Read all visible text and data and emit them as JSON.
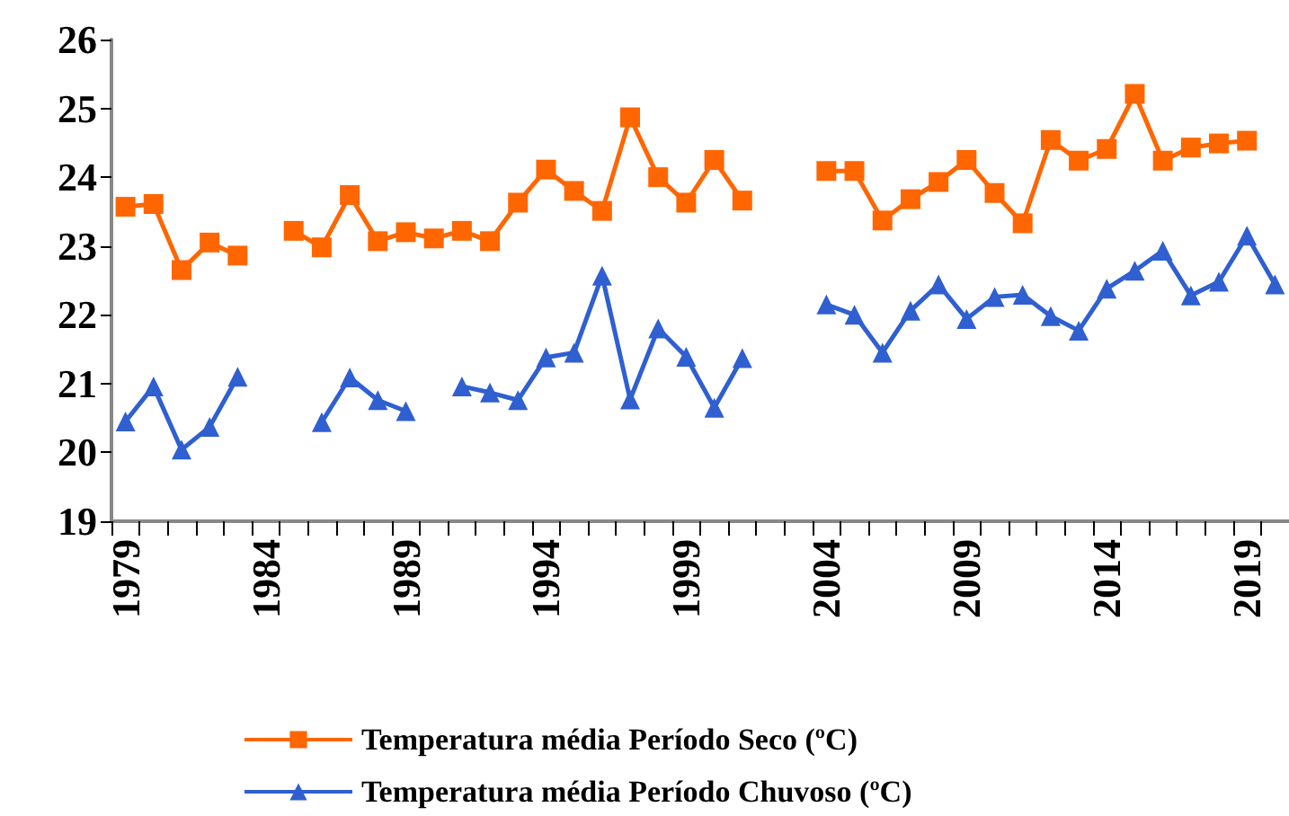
{
  "chart_data": {
    "type": "line",
    "categories": [
      "1979",
      null,
      null,
      null,
      null,
      "1984",
      null,
      null,
      null,
      null,
      "1989",
      null,
      null,
      null,
      null,
      "1994",
      null,
      null,
      null,
      null,
      "1999",
      null,
      null,
      null,
      null,
      "2004",
      null,
      null,
      null,
      null,
      "2009",
      null,
      null,
      null,
      null,
      "2014",
      null,
      null,
      null,
      null,
      "2019",
      null
    ],
    "series": [
      {
        "name": "Temperatura média Período Seco (ºC)",
        "color": "#ff6600",
        "marker": "square",
        "values": [
          23.57,
          23.61,
          22.65,
          23.05,
          22.86,
          null,
          23.22,
          22.98,
          23.74,
          23.07,
          23.2,
          23.11,
          23.22,
          23.07,
          23.63,
          24.11,
          23.8,
          23.51,
          24.87,
          24.0,
          23.63,
          24.25,
          23.66,
          null,
          null,
          24.09,
          24.09,
          23.37,
          23.68,
          23.93,
          24.25,
          23.77,
          23.33,
          24.54,
          24.24,
          24.41,
          25.21,
          24.24,
          24.43,
          24.49,
          24.53,
          null
        ]
      },
      {
        "name": "Temperatura média Período Chuvoso (ºC)",
        "color": "#2f5fd0",
        "marker": "triangle",
        "values": [
          20.45,
          20.96,
          20.04,
          20.37,
          21.1,
          null,
          null,
          20.44,
          21.09,
          20.76,
          20.6,
          null,
          20.96,
          20.87,
          20.76,
          21.38,
          21.45,
          22.57,
          20.77,
          21.8,
          21.39,
          20.65,
          21.37,
          null,
          null,
          22.15,
          22.0,
          21.45,
          22.06,
          22.44,
          21.94,
          22.26,
          22.29,
          21.98,
          21.77,
          22.38,
          22.64,
          22.93,
          22.28,
          22.48,
          23.15,
          22.44
        ]
      }
    ],
    "ylim": [
      19,
      26
    ],
    "yticks": [
      19,
      20,
      21,
      22,
      23,
      24,
      25,
      26
    ],
    "grid": false,
    "legend": "bottom"
  }
}
